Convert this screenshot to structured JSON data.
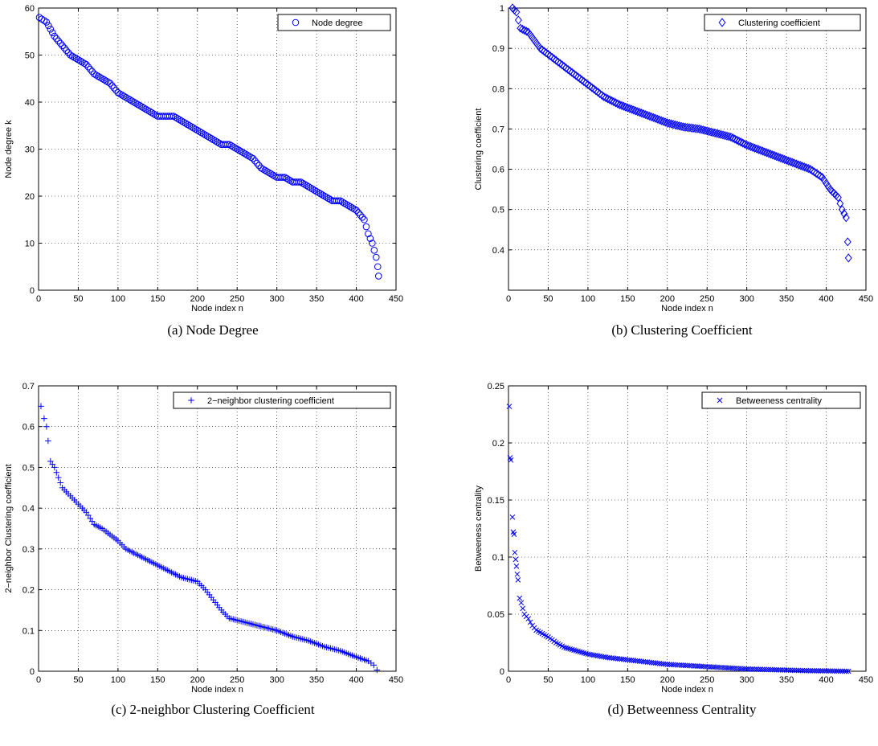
{
  "marker_color": "#0000ff",
  "chart_data": [
    {
      "id": "a",
      "type": "scatter",
      "marker": "circle",
      "caption": "(a) Node Degree",
      "xlabel": "Node index n",
      "ylabel": "Node degree k",
      "xlim": [
        0,
        450
      ],
      "ylim": [
        0,
        60
      ],
      "xticks": [
        0,
        50,
        100,
        150,
        200,
        250,
        300,
        350,
        400,
        450
      ],
      "yticks": [
        0,
        10,
        20,
        30,
        40,
        50,
        60
      ],
      "grid": true,
      "legend_position": "top-right",
      "series": [
        {
          "name": "Node degree",
          "points": [
            [
              1,
              58
            ],
            [
              10,
              57
            ],
            [
              20,
              54
            ],
            [
              30,
              52
            ],
            [
              40,
              50
            ],
            [
              50,
              49
            ],
            [
              60,
              48
            ],
            [
              70,
              46
            ],
            [
              80,
              45
            ],
            [
              90,
              44
            ],
            [
              100,
              42
            ],
            [
              110,
              41
            ],
            [
              120,
              40
            ],
            [
              130,
              39
            ],
            [
              140,
              38
            ],
            [
              150,
              37
            ],
            [
              160,
              37
            ],
            [
              170,
              37
            ],
            [
              180,
              36
            ],
            [
              190,
              35
            ],
            [
              200,
              34
            ],
            [
              210,
              33
            ],
            [
              220,
              32
            ],
            [
              230,
              31
            ],
            [
              240,
              31
            ],
            [
              250,
              30
            ],
            [
              260,
              29
            ],
            [
              270,
              28
            ],
            [
              280,
              26
            ],
            [
              290,
              25
            ],
            [
              300,
              24
            ],
            [
              310,
              24
            ],
            [
              320,
              23
            ],
            [
              330,
              23
            ],
            [
              340,
              22
            ],
            [
              350,
              21
            ],
            [
              360,
              20
            ],
            [
              370,
              19
            ],
            [
              380,
              19
            ],
            [
              390,
              18
            ],
            [
              400,
              17
            ],
            [
              410,
              15
            ],
            [
              415,
              12
            ],
            [
              420,
              10
            ],
            [
              425,
              7
            ],
            [
              427,
              5
            ],
            [
              428,
              3
            ]
          ]
        }
      ]
    },
    {
      "id": "b",
      "type": "scatter",
      "marker": "diamond",
      "caption": "(b) Clustering Coefficient",
      "xlabel": "Node index n",
      "ylabel": "Clustering coefficient",
      "xlim": [
        0,
        450
      ],
      "ylim": [
        0.3,
        1
      ],
      "xticks": [
        0,
        50,
        100,
        150,
        200,
        250,
        300,
        350,
        400,
        450
      ],
      "yticks": [
        0.4,
        0.5,
        0.6,
        0.7,
        0.8,
        0.9,
        1
      ],
      "grid": true,
      "legend_position": "top-right",
      "series": [
        {
          "name": "Clustering coefficient",
          "points": [
            [
              5,
              1.0
            ],
            [
              10,
              0.99
            ],
            [
              15,
              0.95
            ],
            [
              25,
              0.94
            ],
            [
              40,
              0.9
            ],
            [
              60,
              0.87
            ],
            [
              80,
              0.84
            ],
            [
              100,
              0.81
            ],
            [
              120,
              0.78
            ],
            [
              140,
              0.76
            ],
            [
              160,
              0.745
            ],
            [
              180,
              0.73
            ],
            [
              200,
              0.715
            ],
            [
              220,
              0.705
            ],
            [
              240,
              0.7
            ],
            [
              260,
              0.69
            ],
            [
              280,
              0.68
            ],
            [
              300,
              0.66
            ],
            [
              320,
              0.645
            ],
            [
              340,
              0.63
            ],
            [
              360,
              0.615
            ],
            [
              380,
              0.6
            ],
            [
              395,
              0.58
            ],
            [
              405,
              0.55
            ],
            [
              415,
              0.53
            ],
            [
              420,
              0.5
            ],
            [
              425,
              0.48
            ],
            [
              427,
              0.42
            ],
            [
              428,
              0.38
            ]
          ]
        }
      ]
    },
    {
      "id": "c",
      "type": "scatter",
      "marker": "plus",
      "caption": "(c) 2-neighbor Clustering Coefficient",
      "xlabel": "Node index n",
      "ylabel": "2−neighbor Clustering coefficient",
      "xlim": [
        0,
        450
      ],
      "ylim": [
        0,
        0.7
      ],
      "xticks": [
        0,
        50,
        100,
        150,
        200,
        250,
        300,
        350,
        400,
        450
      ],
      "yticks": [
        0,
        0.1,
        0.2,
        0.3,
        0.4,
        0.5,
        0.6,
        0.7
      ],
      "grid": true,
      "legend_position": "top-right",
      "series": [
        {
          "name": "2−neighbor clustering coefficient",
          "points": [
            [
              3,
              0.65
            ],
            [
              7,
              0.62
            ],
            [
              10,
              0.6
            ],
            [
              12,
              0.565
            ],
            [
              15,
              0.515
            ],
            [
              20,
              0.5
            ],
            [
              25,
              0.475
            ],
            [
              30,
              0.45
            ],
            [
              40,
              0.43
            ],
            [
              50,
              0.41
            ],
            [
              60,
              0.39
            ],
            [
              70,
              0.36
            ],
            [
              80,
              0.35
            ],
            [
              90,
              0.335
            ],
            [
              100,
              0.32
            ],
            [
              110,
              0.3
            ],
            [
              120,
              0.29
            ],
            [
              130,
              0.28
            ],
            [
              140,
              0.27
            ],
            [
              150,
              0.26
            ],
            [
              160,
              0.25
            ],
            [
              170,
              0.24
            ],
            [
              180,
              0.23
            ],
            [
              190,
              0.225
            ],
            [
              200,
              0.22
            ],
            [
              210,
              0.2
            ],
            [
              220,
              0.175
            ],
            [
              230,
              0.15
            ],
            [
              240,
              0.13
            ],
            [
              250,
              0.125
            ],
            [
              260,
              0.12
            ],
            [
              280,
              0.11
            ],
            [
              300,
              0.1
            ],
            [
              320,
              0.085
            ],
            [
              340,
              0.075
            ],
            [
              360,
              0.06
            ],
            [
              380,
              0.05
            ],
            [
              400,
              0.035
            ],
            [
              415,
              0.025
            ],
            [
              422,
              0.015
            ],
            [
              426,
              0.003
            ]
          ]
        }
      ]
    },
    {
      "id": "d",
      "type": "scatter",
      "marker": "cross",
      "caption": "(d) Betweenness Centrality",
      "xlabel": "Node index n",
      "ylabel": "Betweeness centrality",
      "xlim": [
        0,
        450
      ],
      "ylim": [
        0,
        0.25
      ],
      "xticks": [
        0,
        50,
        100,
        150,
        200,
        250,
        300,
        350,
        400,
        450
      ],
      "yticks": [
        0,
        0.05,
        0.1,
        0.15,
        0.2,
        0.25
      ],
      "grid": true,
      "legend_position": "top-right",
      "series": [
        {
          "name": "Betweeness centrality",
          "points": [
            [
              1,
              0.232
            ],
            [
              2,
              0.187
            ],
            [
              3,
              0.185
            ],
            [
              5,
              0.135
            ],
            [
              6,
              0.122
            ],
            [
              7,
              0.12
            ],
            [
              8,
              0.104
            ],
            [
              9,
              0.098
            ],
            [
              10,
              0.092
            ],
            [
              11,
              0.085
            ],
            [
              12,
              0.08
            ],
            [
              14,
              0.064
            ],
            [
              16,
              0.06
            ],
            [
              18,
              0.055
            ],
            [
              20,
              0.05
            ],
            [
              25,
              0.046
            ],
            [
              30,
              0.04
            ],
            [
              35,
              0.036
            ],
            [
              40,
              0.034
            ],
            [
              50,
              0.03
            ],
            [
              60,
              0.025
            ],
            [
              70,
              0.021
            ],
            [
              80,
              0.019
            ],
            [
              90,
              0.017
            ],
            [
              100,
              0.015
            ],
            [
              125,
              0.012
            ],
            [
              150,
              0.01
            ],
            [
              175,
              0.008
            ],
            [
              200,
              0.006
            ],
            [
              225,
              0.005
            ],
            [
              250,
              0.004
            ],
            [
              275,
              0.003
            ],
            [
              300,
              0.002
            ],
            [
              325,
              0.0015
            ],
            [
              350,
              0.001
            ],
            [
              375,
              0.0005
            ],
            [
              400,
              0.0003
            ],
            [
              428,
              0.0
            ]
          ]
        }
      ]
    }
  ]
}
